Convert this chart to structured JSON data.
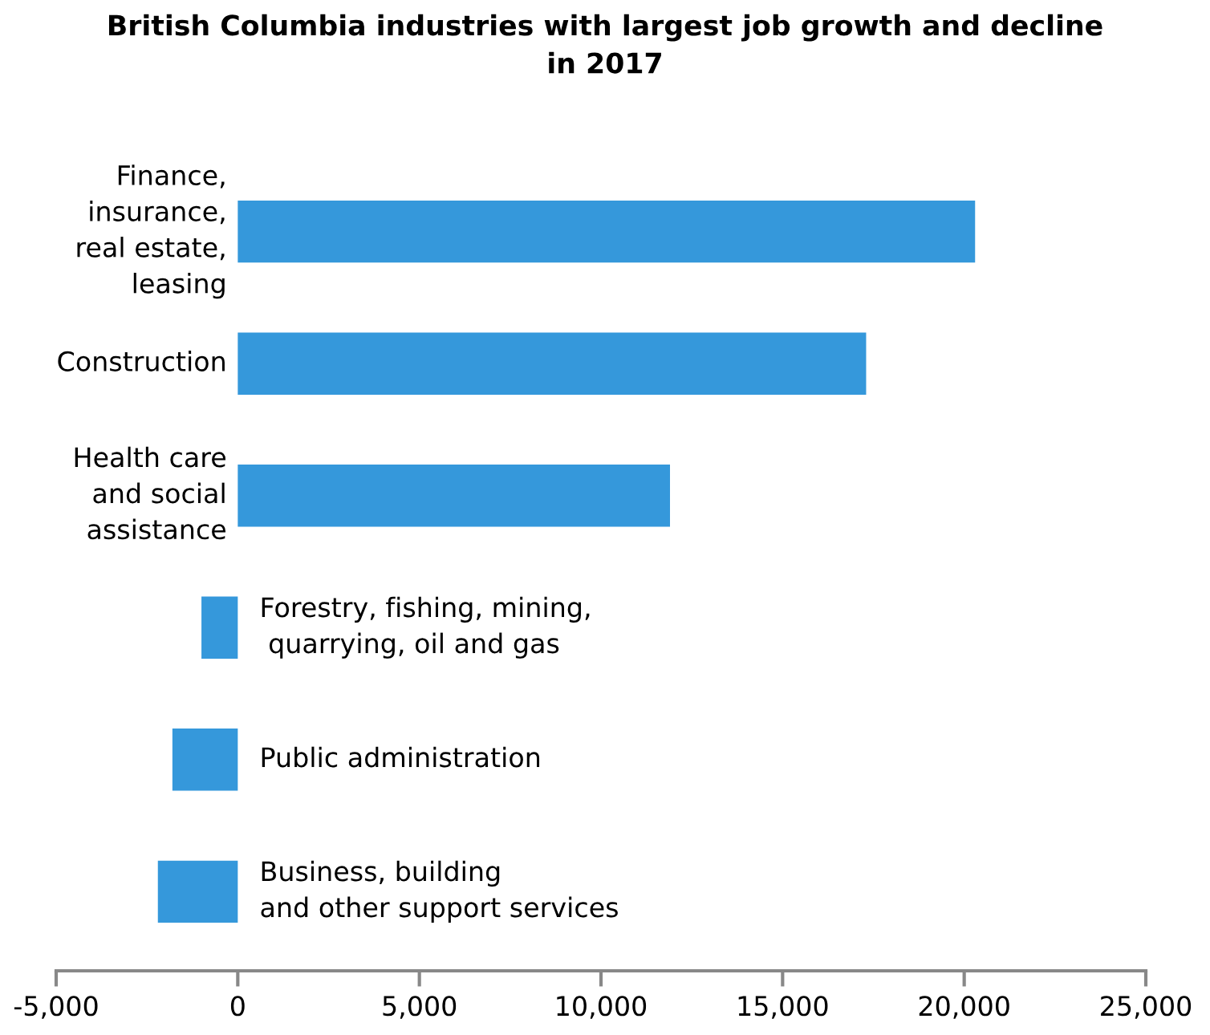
{
  "chart_data": {
    "type": "bar",
    "orientation": "horizontal",
    "title": "British Columbia industries with largest job growth and decline\nin 2017",
    "categories": [
      "Finance,\ninsurance,\nreal estate,\nleasing",
      "Construction",
      "Health care\nand social\nassistance",
      "Forestry, fishing, mining,\n quarrying, oil and gas",
      "Public administration",
      "Business, building\nand other support services"
    ],
    "values": [
      20300,
      17300,
      11900,
      -1000,
      -1800,
      -2200
    ],
    "color": "#3598db",
    "xlim": [
      -5000,
      25000
    ],
    "xticks": [
      {
        "value": -5000,
        "label": "-5,000"
      },
      0,
      {
        "value": 5000,
        "label": "5,000"
      },
      {
        "value": 10000,
        "label": "10,000"
      },
      {
        "value": 15000,
        "label": "15,000"
      },
      {
        "value": 20000,
        "label": "20,000"
      },
      {
        "value": 25000,
        "label": "25,000"
      }
    ],
    "grid": false,
    "legend": false
  }
}
